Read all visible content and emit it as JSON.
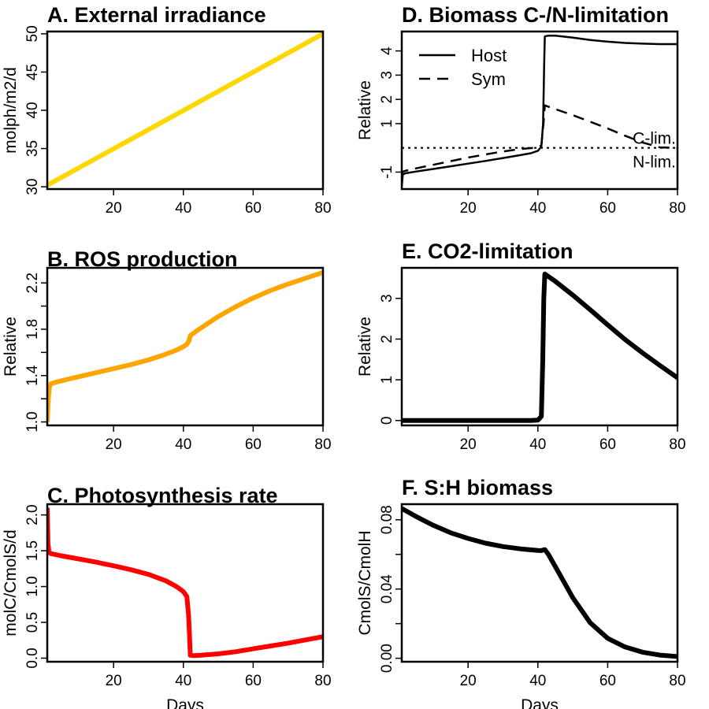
{
  "chart_data": [
    {
      "id": "A",
      "type": "line",
      "title": "A. External irradiance",
      "xlabel": "",
      "ylabel": "molph/m2/d",
      "xlim": [
        1,
        80
      ],
      "ylim": [
        29.7,
        50.3
      ],
      "xticks": [
        20,
        40,
        60,
        80
      ],
      "yticks": [
        30,
        35,
        40,
        45,
        50
      ],
      "ytick_labels": [
        "30",
        "35",
        "40",
        "45",
        "50"
      ],
      "yminor": [],
      "series": [
        {
          "color": "#FFD700",
          "dash": "",
          "width": 6,
          "x": [
            1,
            80
          ],
          "y": [
            30.2,
            50
          ]
        }
      ]
    },
    {
      "id": "B",
      "type": "line",
      "title": "B. ROS production",
      "xlabel": "",
      "ylabel": "Relative",
      "xlim": [
        1,
        80
      ],
      "ylim": [
        0.97,
        2.33
      ],
      "xticks": [
        20,
        40,
        60,
        80
      ],
      "yticks": [
        1.0,
        1.4,
        1.8,
        2.2
      ],
      "ytick_labels": [
        "1.0",
        "1.4",
        "1.8",
        "2.2"
      ],
      "yminor": [
        1.2,
        1.6,
        2.0
      ],
      "series": [
        {
          "color": "#FFA500",
          "dash": "",
          "width": 6,
          "x": [
            1,
            1.3,
            1.6,
            2,
            5,
            10,
            15,
            20,
            25,
            30,
            35,
            38,
            40,
            41,
            41.6,
            42,
            44,
            46,
            50,
            55,
            60,
            65,
            70,
            75,
            80
          ],
          "y": [
            1.0,
            1.2,
            1.3,
            1.33,
            1.355,
            1.39,
            1.425,
            1.46,
            1.495,
            1.535,
            1.585,
            1.62,
            1.65,
            1.67,
            1.7,
            1.745,
            1.79,
            1.83,
            1.91,
            1.995,
            2.07,
            2.135,
            2.19,
            2.24,
            2.29
          ]
        }
      ]
    },
    {
      "id": "C",
      "type": "line",
      "title": "C. Photosynthesis rate",
      "xlabel": "Days",
      "ylabel": "molC/CmolS/d",
      "xlim": [
        1,
        80
      ],
      "ylim": [
        -0.05,
        2.15
      ],
      "xticks": [
        20,
        40,
        60,
        80
      ],
      "yticks": [
        0.0,
        0.5,
        1.0,
        1.5,
        2.0
      ],
      "ytick_labels": [
        "0.0",
        "0.5",
        "1.0",
        "1.5",
        "2.0"
      ],
      "yminor": [],
      "series": [
        {
          "color": "#FF0000",
          "dash": "",
          "width": 6,
          "x": [
            1,
            1.2,
            1.5,
            2,
            5,
            10,
            15,
            20,
            25,
            30,
            35,
            38,
            40,
            41,
            41.5,
            41.8,
            42,
            43,
            45,
            50,
            55,
            60,
            65,
            70,
            75,
            80
          ],
          "y": [
            2.1,
            1.6,
            1.48,
            1.46,
            1.43,
            1.385,
            1.34,
            1.29,
            1.235,
            1.17,
            1.08,
            1.0,
            0.93,
            0.86,
            0.6,
            0.25,
            0.04,
            0.035,
            0.04,
            0.06,
            0.09,
            0.13,
            0.17,
            0.21,
            0.255,
            0.3
          ]
        }
      ]
    },
    {
      "id": "D",
      "type": "line",
      "title": "D. Biomass C-/N-limitation",
      "xlabel": "",
      "ylabel": "Relative",
      "xlim": [
        1,
        80
      ],
      "ylim": [
        -1.7,
        4.8
      ],
      "xticks": [
        20,
        40,
        60,
        80
      ],
      "yticks": [
        -1,
        1,
        2,
        3,
        4
      ],
      "ytick_labels": [
        "-1",
        "1",
        "2",
        "3",
        "4"
      ],
      "yminor": [],
      "legend": {
        "position": "top-left",
        "entries": [
          {
            "label": "Host",
            "dash": ""
          },
          {
            "label": "Sym",
            "dash": "14,9"
          }
        ]
      },
      "reference_line": {
        "y": 0,
        "dash": "3,5"
      },
      "ref_labels": [
        "C-lim.",
        "N-lim."
      ],
      "series": [
        {
          "color": "#000000",
          "dash": "",
          "width": 2.5,
          "x": [
            1,
            1.3,
            2,
            5,
            10,
            15,
            20,
            25,
            30,
            35,
            38,
            40,
            41,
            41.5,
            41.8,
            42,
            43,
            45,
            50,
            55,
            60,
            65,
            70,
            75,
            80
          ],
          "y": [
            -1.6,
            -1.1,
            -1.05,
            -0.98,
            -0.87,
            -0.76,
            -0.65,
            -0.54,
            -0.42,
            -0.3,
            -0.22,
            -0.12,
            0.05,
            1.0,
            3.5,
            4.6,
            4.63,
            4.63,
            4.55,
            4.45,
            4.38,
            4.33,
            4.3,
            4.28,
            4.28
          ]
        },
        {
          "color": "#000000",
          "dash": "14,9",
          "width": 2.5,
          "x": [
            1,
            1.3,
            2,
            5,
            10,
            15,
            20,
            25,
            30,
            35,
            40,
            41,
            41.6,
            42,
            45,
            50,
            55,
            60,
            65,
            70,
            75,
            80
          ],
          "y": [
            -1.2,
            -0.98,
            -0.95,
            -0.85,
            -0.7,
            -0.55,
            -0.4,
            -0.27,
            -0.15,
            -0.05,
            0.02,
            0.1,
            1.0,
            1.75,
            1.6,
            1.35,
            1.08,
            0.8,
            0.5,
            0.22,
            0.02,
            0.0
          ]
        }
      ]
    },
    {
      "id": "E",
      "type": "line",
      "title": "E. CO2-limitation",
      "xlabel": "",
      "ylabel": "Relative",
      "xlim": [
        1,
        80
      ],
      "ylim": [
        -0.12,
        3.75
      ],
      "xticks": [
        20,
        40,
        60,
        80
      ],
      "yticks": [
        0,
        1,
        2,
        3
      ],
      "ytick_labels": [
        "0",
        "1",
        "2",
        "3"
      ],
      "yminor": [],
      "series": [
        {
          "color": "#000000",
          "dash": "",
          "width": 6,
          "x": [
            1,
            38,
            40,
            41,
            41.4,
            41.7,
            42,
            45,
            50,
            55,
            60,
            65,
            70,
            75,
            80
          ],
          "y": [
            0,
            0,
            0.01,
            0.1,
            1.5,
            3.0,
            3.6,
            3.42,
            3.08,
            2.72,
            2.35,
            1.99,
            1.66,
            1.35,
            1.05
          ]
        }
      ]
    },
    {
      "id": "F",
      "type": "line",
      "title": "F. S:H biomass",
      "xlabel": "Days",
      "ylabel": "CmolS/CmolH",
      "xlim": [
        1,
        80
      ],
      "ylim": [
        -0.002,
        0.089
      ],
      "xticks": [
        20,
        40,
        60,
        80
      ],
      "yticks": [
        0.0,
        0.04,
        0.08
      ],
      "ytick_labels": [
        "0.00",
        "0.04",
        "0.08"
      ],
      "yminor": [
        0.02,
        0.06
      ],
      "series": [
        {
          "color": "#000000",
          "dash": "",
          "width": 6,
          "x": [
            1,
            5,
            10,
            15,
            20,
            25,
            30,
            35,
            40,
            41,
            42,
            43,
            45,
            50,
            55,
            60,
            65,
            70,
            75,
            80
          ],
          "y": [
            0.0865,
            0.082,
            0.0768,
            0.0725,
            0.0692,
            0.0665,
            0.0645,
            0.0632,
            0.0623,
            0.0622,
            0.0628,
            0.06,
            0.053,
            0.035,
            0.0205,
            0.0115,
            0.0065,
            0.0035,
            0.0018,
            0.001
          ]
        }
      ]
    }
  ]
}
